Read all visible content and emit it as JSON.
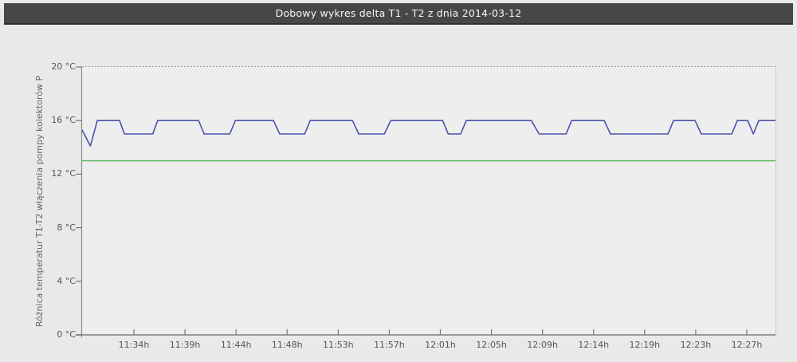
{
  "header": {
    "title": "Dobowy wykres delta T1 - T2 z dnia 2014-03-12"
  },
  "chart_data": {
    "type": "line",
    "title": "Dobowy wykres delta T1 - T2 z dnia 2014-03-12",
    "xlabel": "",
    "ylabel": "Różnica temperatur T1-T2 włączenia pompy kolektorów P",
    "ylim": [
      0,
      20
    ],
    "y_unit": "°C",
    "y_ticks": [
      0,
      4,
      8,
      12,
      16,
      20
    ],
    "x_tick_labels": [
      "11:34h",
      "11:39h",
      "11:44h",
      "11:48h",
      "11:53h",
      "11:57h",
      "12:01h",
      "12:05h",
      "12:09h",
      "12:14h",
      "12:19h",
      "12:23h",
      "12:27h"
    ],
    "legend": "none",
    "grid": "dashed top border only, light right border",
    "series": [
      {
        "id": "delta-t1-t2-line",
        "kind": "line",
        "color": "#4a51ab",
        "x_mode": "fraction-of-plot-width",
        "points": [
          [
            0.0,
            15.3
          ],
          [
            0.012,
            14.1
          ],
          [
            0.022,
            16
          ],
          [
            0.054,
            16
          ],
          [
            0.061,
            15
          ],
          [
            0.102,
            15
          ],
          [
            0.109,
            16
          ],
          [
            0.168,
            16
          ],
          [
            0.176,
            15
          ],
          [
            0.213,
            15
          ],
          [
            0.221,
            16
          ],
          [
            0.276,
            16
          ],
          [
            0.285,
            15
          ],
          [
            0.321,
            15
          ],
          [
            0.329,
            16
          ],
          [
            0.39,
            16
          ],
          [
            0.399,
            15
          ],
          [
            0.436,
            15
          ],
          [
            0.445,
            16
          ],
          [
            0.52,
            16
          ],
          [
            0.528,
            15
          ],
          [
            0.546,
            15
          ],
          [
            0.554,
            16
          ],
          [
            0.648,
            16
          ],
          [
            0.659,
            15
          ],
          [
            0.698,
            15
          ],
          [
            0.706,
            16
          ],
          [
            0.753,
            16
          ],
          [
            0.762,
            15
          ],
          [
            0.845,
            15
          ],
          [
            0.853,
            16
          ],
          [
            0.884,
            16
          ],
          [
            0.893,
            15
          ],
          [
            0.937,
            15
          ],
          [
            0.945,
            16
          ],
          [
            0.96,
            16
          ],
          [
            0.968,
            15
          ],
          [
            0.976,
            16
          ],
          [
            1.0,
            16
          ]
        ]
      },
      {
        "id": "threshold-line",
        "kind": "hline",
        "color": "#5fb75f",
        "value": 13
      }
    ],
    "colors": {
      "axis": "#8c8c8c",
      "tick": "#777777",
      "tick_label": "#555555",
      "top_border": "#9a9a9a",
      "right_border": "#c9c9c9"
    }
  }
}
